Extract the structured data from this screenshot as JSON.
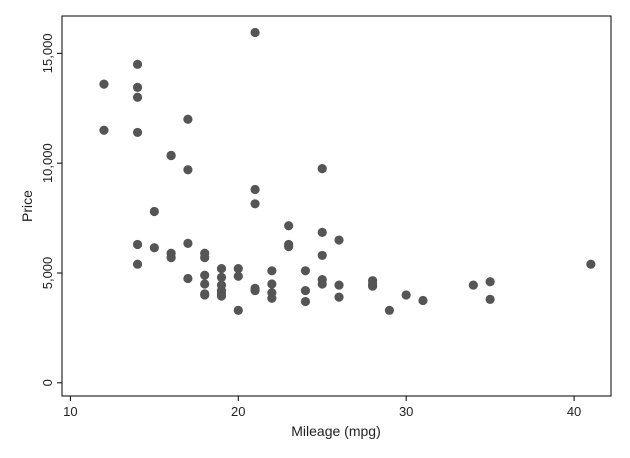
{
  "chart_data": {
    "type": "scatter",
    "xlabel": "Mileage (mpg)",
    "ylabel": "Price",
    "xlim": [
      9.5,
      42.2
    ],
    "ylim": [
      -600,
      16700
    ],
    "x_ticks": [
      {
        "value": 10,
        "label": "10"
      },
      {
        "value": 20,
        "label": "20"
      },
      {
        "value": 30,
        "label": "30"
      },
      {
        "value": 40,
        "label": "40"
      }
    ],
    "y_ticks": [
      {
        "value": 0,
        "label": "0"
      },
      {
        "value": 5000,
        "label": "5,000"
      },
      {
        "value": 10000,
        "label": "10,000"
      },
      {
        "value": 15000,
        "label": "15,000"
      }
    ],
    "grid": false,
    "legend": "none",
    "marker_color": "#555555",
    "axis_color": "#000000",
    "points": [
      {
        "x": 12,
        "y": 13600
      },
      {
        "x": 12,
        "y": 11500
      },
      {
        "x": 14,
        "y": 14500
      },
      {
        "x": 14,
        "y": 13450
      },
      {
        "x": 14,
        "y": 13000
      },
      {
        "x": 14,
        "y": 11400
      },
      {
        "x": 14,
        "y": 6300
      },
      {
        "x": 14,
        "y": 5400
      },
      {
        "x": 15,
        "y": 7800
      },
      {
        "x": 15,
        "y": 6150
      },
      {
        "x": 16,
        "y": 10350
      },
      {
        "x": 16,
        "y": 10350
      },
      {
        "x": 16,
        "y": 5900
      },
      {
        "x": 16,
        "y": 5700
      },
      {
        "x": 17,
        "y": 12000
      },
      {
        "x": 17,
        "y": 9700
      },
      {
        "x": 17,
        "y": 6350
      },
      {
        "x": 17,
        "y": 4750
      },
      {
        "x": 18,
        "y": 5900
      },
      {
        "x": 18,
        "y": 5700
      },
      {
        "x": 18,
        "y": 4900
      },
      {
        "x": 18,
        "y": 4500
      },
      {
        "x": 18,
        "y": 4050
      },
      {
        "x": 18,
        "y": 4000
      },
      {
        "x": 19,
        "y": 5200
      },
      {
        "x": 19,
        "y": 4800
      },
      {
        "x": 19,
        "y": 4450
      },
      {
        "x": 19,
        "y": 4200
      },
      {
        "x": 19,
        "y": 4050
      },
      {
        "x": 19,
        "y": 3950
      },
      {
        "x": 20,
        "y": 5200
      },
      {
        "x": 20,
        "y": 4850
      },
      {
        "x": 20,
        "y": 3300
      },
      {
        "x": 21,
        "y": 15950
      },
      {
        "x": 21,
        "y": 8800
      },
      {
        "x": 21,
        "y": 8150
      },
      {
        "x": 21,
        "y": 4300
      },
      {
        "x": 21,
        "y": 4200
      },
      {
        "x": 22,
        "y": 5100
      },
      {
        "x": 22,
        "y": 4500
      },
      {
        "x": 22,
        "y": 4100
      },
      {
        "x": 22,
        "y": 3850
      },
      {
        "x": 23,
        "y": 7150
      },
      {
        "x": 23,
        "y": 6300
      },
      {
        "x": 23,
        "y": 6200
      },
      {
        "x": 24,
        "y": 5100
      },
      {
        "x": 24,
        "y": 4200
      },
      {
        "x": 24,
        "y": 3700
      },
      {
        "x": 25,
        "y": 9750
      },
      {
        "x": 25,
        "y": 6850
      },
      {
        "x": 25,
        "y": 5800
      },
      {
        "x": 25,
        "y": 4700
      },
      {
        "x": 25,
        "y": 4500
      },
      {
        "x": 26,
        "y": 6500
      },
      {
        "x": 26,
        "y": 4450
      },
      {
        "x": 26,
        "y": 3900
      },
      {
        "x": 28,
        "y": 4650
      },
      {
        "x": 28,
        "y": 4500
      },
      {
        "x": 28,
        "y": 4400
      },
      {
        "x": 29,
        "y": 3300
      },
      {
        "x": 30,
        "y": 4000
      },
      {
        "x": 31,
        "y": 3750
      },
      {
        "x": 34,
        "y": 4450
      },
      {
        "x": 35,
        "y": 4600
      },
      {
        "x": 35,
        "y": 3800
      },
      {
        "x": 41,
        "y": 5400
      }
    ]
  }
}
